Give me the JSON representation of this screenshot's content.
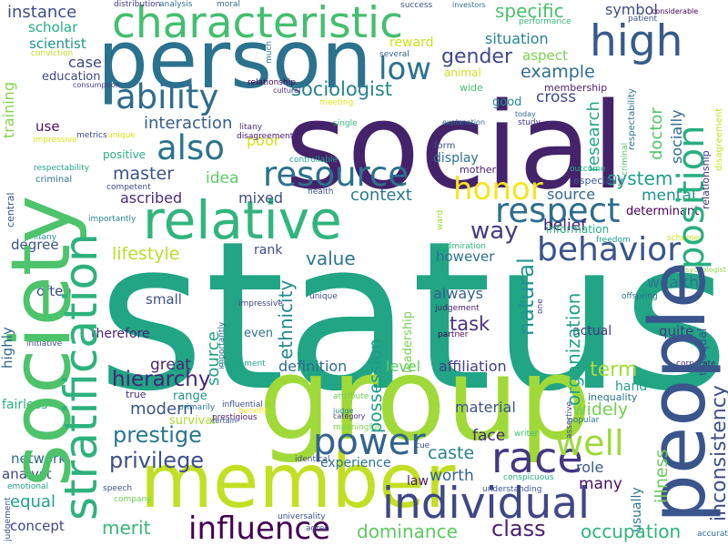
{
  "words": [
    {
      "text": "status",
      "color": "#21a585"
    },
    {
      "text": "social",
      "color": "#44236a"
    },
    {
      "text": "group",
      "color": "#a0da39"
    },
    {
      "text": "person",
      "color": "#2b728e"
    },
    {
      "text": "society",
      "color": "#4dc36b"
    },
    {
      "text": "people",
      "color": "#39558c"
    },
    {
      "text": "member",
      "color": "#c2df23"
    },
    {
      "text": "characteristic",
      "color": "#44bf70"
    },
    {
      "text": "relative",
      "color": "#30b57e"
    },
    {
      "text": "stratification",
      "color": "#2db27d"
    },
    {
      "text": "individual",
      "color": "#3f4788"
    },
    {
      "text": "position",
      "color": "#29af7f"
    },
    {
      "text": "high",
      "color": "#375a8c"
    },
    {
      "text": "race",
      "color": "#453781"
    },
    {
      "text": "influence",
      "color": "#440154"
    },
    {
      "text": "power",
      "color": "#33638d"
    },
    {
      "text": "behavior",
      "color": "#3a548c"
    },
    {
      "text": "resource",
      "color": "#2d718e"
    },
    {
      "text": "respect",
      "color": "#2e6e8e"
    },
    {
      "text": "ability",
      "color": "#2f6c8e"
    },
    {
      "text": "also",
      "color": "#2c738e"
    },
    {
      "text": "well",
      "color": "#9dd93b"
    },
    {
      "text": "honor",
      "color": "#f4e61e"
    },
    {
      "text": "low",
      "color": "#2c728e"
    },
    {
      "text": "prestige",
      "color": "#2a768e"
    },
    {
      "text": "hierarchy",
      "color": "#482475"
    },
    {
      "text": "sociologist",
      "color": "#25838e"
    },
    {
      "text": "privilege",
      "color": "#3c4f8a"
    },
    {
      "text": "class",
      "color": "#481f70"
    },
    {
      "text": "natural",
      "color": "#1f948c"
    },
    {
      "text": "organization",
      "color": "#20a386"
    },
    {
      "text": "dominance",
      "color": "#5ec962"
    },
    {
      "text": "merit",
      "color": "#35b779"
    },
    {
      "text": "occupation",
      "color": "#2fb47c"
    },
    {
      "text": "way",
      "color": "#443a83"
    },
    {
      "text": "experience",
      "color": "#2c718e"
    },
    {
      "text": "specific",
      "color": "#4ac16d"
    },
    {
      "text": "gender",
      "color": "#3e4989"
    },
    {
      "text": "situation",
      "color": "#25848e"
    },
    {
      "text": "interaction",
      "color": "#365d8d"
    },
    {
      "text": "master",
      "color": "#3a538b"
    },
    {
      "text": "ascribed",
      "color": "#472d7b"
    },
    {
      "text": "system",
      "color": "#1f9e89"
    },
    {
      "text": "mental",
      "color": "#21918c"
    },
    {
      "text": "belief",
      "color": "#482071"
    },
    {
      "text": "definition",
      "color": "#2f6b8e"
    },
    {
      "text": "affiliation",
      "color": "#424086"
    },
    {
      "text": "modern",
      "color": "#3b528b"
    },
    {
      "text": "equal",
      "color": "#1fa188"
    },
    {
      "text": "concept",
      "color": "#414487"
    },
    {
      "text": "term",
      "color": "#a5db36"
    },
    {
      "text": "task",
      "color": "#46327e"
    },
    {
      "text": "value",
      "color": "#2a778e"
    },
    {
      "text": "lifestyle",
      "color": "#b8de29"
    },
    {
      "text": "caste",
      "color": "#27808e"
    },
    {
      "text": "widely",
      "color": "#75d054"
    },
    {
      "text": "example",
      "color": "#2e6d8e"
    },
    {
      "text": "context",
      "color": "#2a788e"
    },
    {
      "text": "instance",
      "color": "#3d4d8a"
    },
    {
      "text": "face",
      "color": "#482878"
    },
    {
      "text": "doctor",
      "color": "#52c569"
    },
    {
      "text": "worth",
      "color": "#35608d"
    },
    {
      "text": "possession",
      "color": "#1f9a8a"
    },
    {
      "text": "research",
      "color": "#22a884"
    },
    {
      "text": "wealth",
      "color": "#2a788e"
    },
    {
      "text": "source",
      "color": "#31688e"
    },
    {
      "text": "ethnicity",
      "color": "#1fa188"
    },
    {
      "text": "external",
      "color": "#23898e"
    },
    {
      "text": "cross",
      "color": "#414487"
    },
    {
      "text": "aspect",
      "color": "#7ad151"
    },
    {
      "text": "symbol",
      "color": "#3e4a89"
    },
    {
      "text": "socially",
      "color": "#30698e"
    },
    {
      "text": "display",
      "color": "#2c728e"
    },
    {
      "text": "illness",
      "color": "#6ccd5a"
    },
    {
      "text": "role",
      "color": "#38598c"
    },
    {
      "text": "many",
      "color": "#471063"
    },
    {
      "text": "great",
      "color": "#482475"
    },
    {
      "text": "network",
      "color": "#31668e"
    },
    {
      "text": "analyst",
      "color": "#404688"
    },
    {
      "text": "poor",
      "color": "#d8e219"
    },
    {
      "text": "always",
      "color": "#355f8d"
    },
    {
      "text": "mixed",
      "color": "#3c4f8a"
    },
    {
      "text": "however",
      "color": "#2d708e"
    },
    {
      "text": "idea",
      "color": "#5ec962"
    },
    {
      "text": "level",
      "color": "#5ec962"
    },
    {
      "text": "reward",
      "color": "#cae11f"
    },
    {
      "text": "case",
      "color": "#404588"
    },
    {
      "text": "scientist",
      "color": "#1f958b"
    },
    {
      "text": "scholar",
      "color": "#27ad81"
    },
    {
      "text": "often",
      "color": "#404688"
    },
    {
      "text": "degree",
      "color": "#3b518b"
    },
    {
      "text": "highly",
      "color": "#31688e"
    },
    {
      "text": "therefore",
      "color": "#482475"
    },
    {
      "text": "fairless",
      "color": "#2db27d"
    },
    {
      "text": "hand",
      "color": "#1f9e89"
    },
    {
      "text": "small",
      "color": "#3b528b"
    },
    {
      "text": "use",
      "color": "#481467"
    },
    {
      "text": "training",
      "color": "#84d44b"
    },
    {
      "text": "quite",
      "color": "#453882"
    },
    {
      "text": "result",
      "color": "#3d4e8a"
    },
    {
      "text": "inconsistency",
      "color": "#29798e"
    },
    {
      "text": "usually",
      "color": "#463480"
    },
    {
      "text": "actual",
      "color": "#3e4a89"
    },
    {
      "text": "rank",
      "color": "#2e6f8e"
    },
    {
      "text": "even",
      "color": "#addc30"
    },
    {
      "text": "survival",
      "color": "#1f958b"
    },
    {
      "text": "range",
      "color": "#472c7a"
    },
    {
      "text": "true",
      "color": "#3b528b"
    },
    {
      "text": "material",
      "color": "#3f4788"
    },
    {
      "text": "education",
      "color": "#21918c"
    },
    {
      "text": "good",
      "color": "#43bf71"
    },
    {
      "text": "wide",
      "color": "#482173"
    },
    {
      "text": "membership",
      "color": "#482374"
    },
    {
      "text": "mother",
      "color": "#38588c"
    },
    {
      "text": "especially",
      "color": "#26ad81"
    },
    {
      "text": "information",
      "color": "#440154"
    },
    {
      "text": "determinant",
      "color": "#2c738e"
    },
    {
      "text": "inequality",
      "color": "#cde11d"
    },
    {
      "text": "animal",
      "color": "#29af7f"
    },
    {
      "text": "positive",
      "color": "#3b528b"
    },
    {
      "text": "central",
      "color": "#3e4c8a"
    },
    {
      "text": "judgement",
      "color": "#20a386"
    },
    {
      "text": "leadership",
      "color": "#482071"
    },
    {
      "text": "offspring",
      "color": "#7ad151"
    },
    {
      "text": "unequal",
      "color": "#2e6e8e"
    },
    {
      "text": "relationship",
      "color": "#3a548c"
    },
    {
      "text": "disagreement",
      "color": "#46327e"
    },
    {
      "text": "respectability",
      "color": "#c8e020"
    },
    {
      "text": "criminal",
      "color": "#2c738e"
    },
    {
      "text": "competent",
      "color": "#4ec36b"
    },
    {
      "text": "metrics",
      "color": "#3d4d8a"
    },
    {
      "text": "unique",
      "color": "#424186"
    },
    {
      "text": "impressive",
      "color": "#440154"
    },
    {
      "text": "controllable",
      "color": "#481467"
    },
    {
      "text": "health",
      "color": "#25848e"
    },
    {
      "text": "conviction",
      "color": "#21918c"
    },
    {
      "text": "consumption",
      "color": "#22a785"
    },
    {
      "text": "litany",
      "color": "#2d708e"
    },
    {
      "text": "importantly",
      "color": "#3e4989"
    },
    {
      "text": "single",
      "color": "#424086"
    },
    {
      "text": "explanation",
      "color": "#d8e219"
    },
    {
      "text": "study",
      "color": "#dde318"
    },
    {
      "text": "form",
      "color": "#1fa088"
    },
    {
      "text": "today",
      "color": "#3b528b"
    },
    {
      "text": "cultural",
      "color": "#bddf26"
    },
    {
      "text": "meeting",
      "color": "#453882"
    },
    {
      "text": "much",
      "color": "#472e7c"
    },
    {
      "text": "several",
      "color": "#34618d"
    },
    {
      "text": "success",
      "color": "#35b779"
    },
    {
      "text": "investors",
      "color": "#2c718e"
    },
    {
      "text": "performance",
      "color": "#46337f"
    },
    {
      "text": "considerable",
      "color": "#3a548c"
    },
    {
      "text": "patient",
      "color": "#31688e"
    },
    {
      "text": "distribution",
      "color": "#e5e419"
    },
    {
      "text": "analysis",
      "color": "#472d7b"
    },
    {
      "text": "moral",
      "color": "#29798e"
    },
    {
      "text": "ward",
      "color": "#355f8d"
    },
    {
      "text": "admiration",
      "color": "#3b528b"
    },
    {
      "text": "one",
      "color": "#2d718e"
    },
    {
      "text": "freedom",
      "color": "#37b878"
    },
    {
      "text": "scheme",
      "color": "#440154"
    },
    {
      "text": "psychologist",
      "color": "#3b518b"
    },
    {
      "text": "outcome",
      "color": "#443983"
    },
    {
      "text": "corporate",
      "color": "#2c728e"
    },
    {
      "text": "initiative",
      "color": "#2f6c8e"
    },
    {
      "text": "partner",
      "color": "#9fda3a"
    },
    {
      "text": "benefit",
      "color": "#2fb47c"
    },
    {
      "text": "primarily",
      "color": "#3f4889"
    },
    {
      "text": "influential",
      "color": "#1f9e89"
    },
    {
      "text": "prestigious",
      "color": "#d0e11c"
    },
    {
      "text": "certain",
      "color": "#90d743"
    },
    {
      "text": "attribute",
      "color": "#29af7f"
    },
    {
      "text": "judge",
      "color": "#482173"
    },
    {
      "text": "category",
      "color": "#3f4788"
    },
    {
      "text": "meaningful",
      "color": "#440154"
    },
    {
      "text": "assertive",
      "color": "#fde725"
    },
    {
      "text": "popular",
      "color": "#2a788e"
    },
    {
      "text": "writer",
      "color": "#3e4c8a"
    },
    {
      "text": "cue",
      "color": "#482173"
    },
    {
      "text": "conspicuous",
      "color": "#39568c"
    },
    {
      "text": "emotional",
      "color": "#6ece58"
    },
    {
      "text": "speech",
      "color": "#25838e"
    },
    {
      "text": "company",
      "color": "#46317e"
    },
    {
      "text": "identical",
      "color": "#7fd34e"
    },
    {
      "text": "understanding",
      "color": "#3f4788"
    },
    {
      "text": "universality",
      "color": "#2c728e"
    },
    {
      "text": "agree",
      "color": "#44bf70"
    },
    {
      "text": "accurate",
      "color": "#3d4e8a"
    },
    {
      "text": "apparent",
      "color": "#27ad81"
    },
    {
      "text": "generally",
      "color": "#1fa088"
    },
    {
      "text": "inaccurate",
      "color": "#3b518b"
    },
    {
      "text": "private",
      "color": "#6ccd5a"
    },
    {
      "text": "day",
      "color": "#3e4a89"
    },
    {
      "text": "life",
      "color": "#3b528b"
    },
    {
      "text": "competence",
      "color": "#3b528b"
    },
    {
      "text": "beautiful",
      "color": "#3b528b"
    },
    {
      "text": "sense",
      "color": "#2f6c8e"
    }
  ]
}
